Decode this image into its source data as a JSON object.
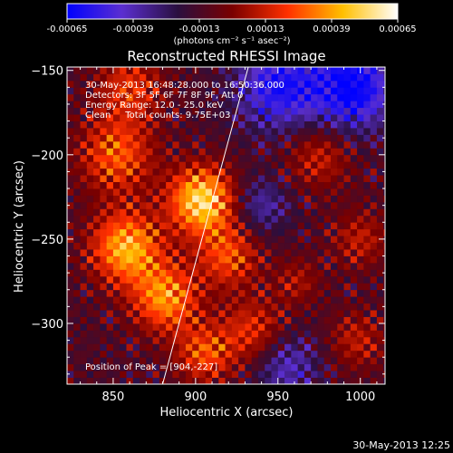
{
  "colorbar": {
    "ticks": [
      "-0.00065",
      "-0.00039",
      "-0.00013",
      "0.00013",
      "0.00039",
      "0.00065"
    ],
    "units": "(photons cm⁻² s⁻¹ asec⁻²)",
    "colors": [
      "#0000ff",
      "#5b2fd0",
      "#2a0f40",
      "#7a0000",
      "#ff3000",
      "#ffbf00",
      "#ffffff"
    ]
  },
  "title": "Reconstructed RHESSI Image",
  "info": [
    "30-May-2013 16:48:28.000 to 16:50:36.000",
    "Detectors: 3F 5F 6F 7F 8F 9F, Att 0",
    "Energy Range: 12.0 - 25.0 keV",
    "Clean     Total counts: 9.75E+03"
  ],
  "peak_label": "Position of Peak = [904,-227]",
  "timestamp": "30-May-2013 12:25",
  "chart_data": {
    "type": "heatmap",
    "title": "Reconstructed RHESSI Image",
    "xlabel": "Heliocentric X (arcsec)",
    "ylabel": "Heliocentric Y (arcsec)",
    "xlim": [
      822,
      1015
    ],
    "ylim": [
      -336,
      -148
    ],
    "xticks": [
      850,
      900,
      950,
      1000
    ],
    "yticks": [
      -150,
      -200,
      -250,
      -300
    ],
    "xtick_labels": [
      "850",
      "900",
      "950",
      "1000"
    ],
    "ytick_labels": [
      "−150",
      "−200",
      "−250",
      "−300"
    ],
    "zlim": [
      -0.00065,
      0.00065
    ],
    "peak": [
      904,
      -227
    ],
    "limb_line": [
      [
        880,
        -336
      ],
      [
        932,
        -148
      ]
    ],
    "sources": [
      {
        "x": 904,
        "y": -227,
        "amp": 0.00065,
        "sigma": 14
      },
      {
        "x": 858,
        "y": -255,
        "amp": 0.00055,
        "sigma": 15
      },
      {
        "x": 882,
        "y": -285,
        "amp": 0.00048,
        "sigma": 14
      },
      {
        "x": 852,
        "y": -200,
        "amp": 0.00038,
        "sigma": 16
      },
      {
        "x": 860,
        "y": -160,
        "amp": 0.0003,
        "sigma": 14
      },
      {
        "x": 920,
        "y": -260,
        "amp": 0.00035,
        "sigma": 13
      },
      {
        "x": 935,
        "y": -305,
        "amp": 0.0003,
        "sigma": 14
      },
      {
        "x": 905,
        "y": -318,
        "amp": 0.00035,
        "sigma": 12
      },
      {
        "x": 975,
        "y": -200,
        "amp": 0.00025,
        "sigma": 14
      },
      {
        "x": 1000,
        "y": -250,
        "amp": 0.00022,
        "sigma": 12
      },
      {
        "x": 998,
        "y": -310,
        "amp": 0.00022,
        "sigma": 12
      },
      {
        "x": 962,
        "y": -275,
        "amp": 0.00018,
        "sigma": 10
      },
      {
        "x": 950,
        "y": -160,
        "amp": -0.00045,
        "sigma": 18
      },
      {
        "x": 995,
        "y": -160,
        "amp": -0.00055,
        "sigma": 18
      },
      {
        "x": 955,
        "y": -325,
        "amp": -0.0003,
        "sigma": 14
      },
      {
        "x": 940,
        "y": -230,
        "amp": -0.00025,
        "sigma": 12
      }
    ]
  }
}
